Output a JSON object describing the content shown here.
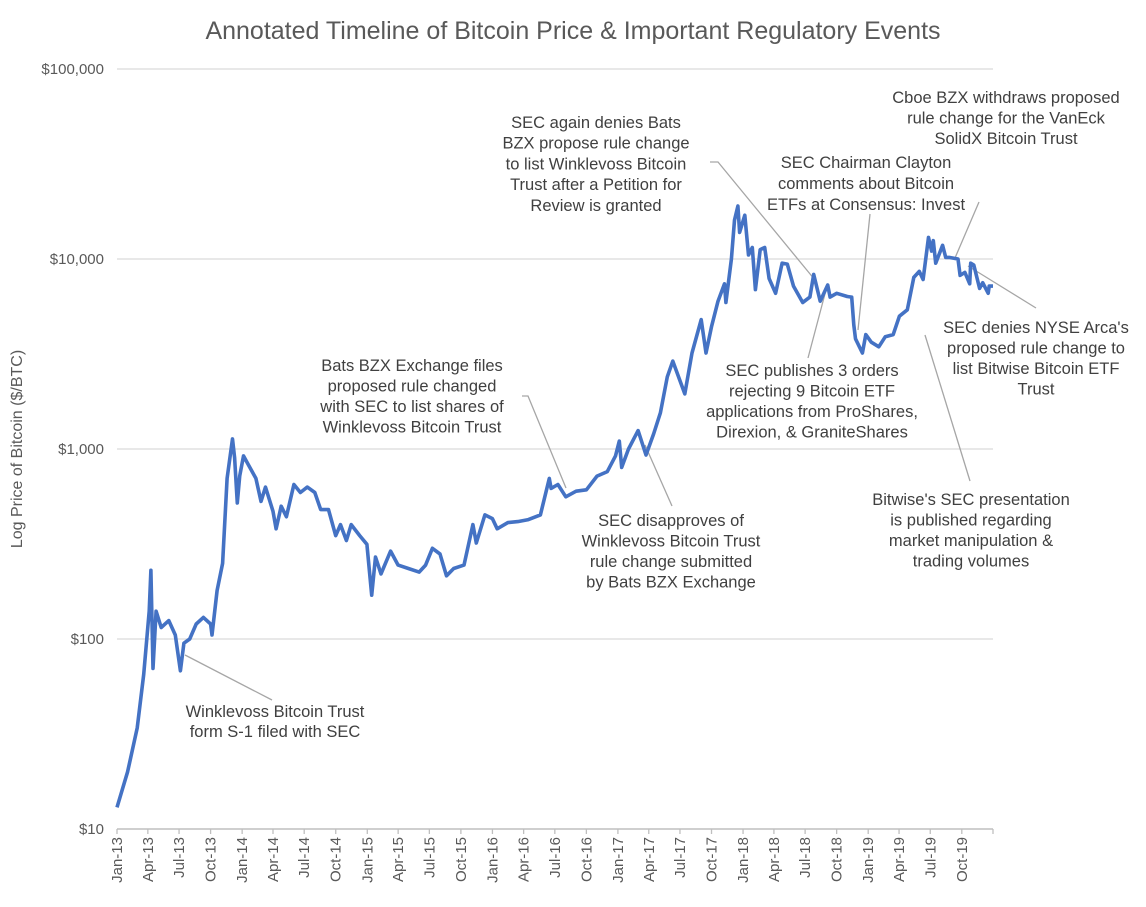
{
  "chart_data": {
    "type": "line",
    "title": "Annotated Timeline of Bitcoin Price & Important Regulatory Events",
    "xlabel": "",
    "ylabel": "Log Price of Bitcoin ($/BTC)",
    "y_scale": "log",
    "ylim": [
      10,
      100000
    ],
    "y_ticks": [
      "$10",
      "$100",
      "$1,000",
      "$10,000",
      "$100,000"
    ],
    "y_tick_values": [
      10,
      100,
      1000,
      10000,
      100000
    ],
    "x_ticks": [
      "Jan-13",
      "Apr-13",
      "Jul-13",
      "Oct-13",
      "Jan-14",
      "Apr-14",
      "Jul-14",
      "Oct-14",
      "Jan-15",
      "Apr-15",
      "Jul-15",
      "Oct-15",
      "Jan-16",
      "Apr-16",
      "Jul-16",
      "Oct-16",
      "Jan-17",
      "Apr-17",
      "Jul-17",
      "Oct-17",
      "Jan-18",
      "Apr-18",
      "Jul-18",
      "Oct-18",
      "Jan-19",
      "Apr-19",
      "Jul-19",
      "Oct-19"
    ],
    "xlim": [
      "2013-01-01",
      "2019-12-31"
    ],
    "grid": "horizontal",
    "line_color": "#4472C4",
    "series": [
      {
        "points": [
          [
            "2013-01-01",
            13
          ],
          [
            "2013-02-01",
            20
          ],
          [
            "2013-03-01",
            34
          ],
          [
            "2013-03-20",
            65
          ],
          [
            "2013-04-05",
            140
          ],
          [
            "2013-04-10",
            230
          ],
          [
            "2013-04-16",
            70
          ],
          [
            "2013-04-25",
            140
          ],
          [
            "2013-05-10",
            115
          ],
          [
            "2013-06-01",
            125
          ],
          [
            "2013-06-20",
            105
          ],
          [
            "2013-07-05",
            68
          ],
          [
            "2013-07-15",
            95
          ],
          [
            "2013-08-01",
            100
          ],
          [
            "2013-08-20",
            120
          ],
          [
            "2013-09-10",
            130
          ],
          [
            "2013-10-01",
            120
          ],
          [
            "2013-10-05",
            105
          ],
          [
            "2013-10-20",
            180
          ],
          [
            "2013-11-05",
            250
          ],
          [
            "2013-11-18",
            700
          ],
          [
            "2013-12-04",
            1130
          ],
          [
            "2013-12-10",
            900
          ],
          [
            "2013-12-18",
            520
          ],
          [
            "2013-12-25",
            720
          ],
          [
            "2014-01-05",
            920
          ],
          [
            "2014-01-20",
            820
          ],
          [
            "2014-02-10",
            700
          ],
          [
            "2014-02-25",
            530
          ],
          [
            "2014-03-10",
            630
          ],
          [
            "2014-04-01",
            470
          ],
          [
            "2014-04-10",
            380
          ],
          [
            "2014-04-25",
            500
          ],
          [
            "2014-05-10",
            440
          ],
          [
            "2014-06-01",
            650
          ],
          [
            "2014-06-20",
            590
          ],
          [
            "2014-07-10",
            630
          ],
          [
            "2014-08-01",
            590
          ],
          [
            "2014-08-18",
            480
          ],
          [
            "2014-09-10",
            480
          ],
          [
            "2014-10-01",
            350
          ],
          [
            "2014-10-15",
            400
          ],
          [
            "2014-11-01",
            330
          ],
          [
            "2014-11-15",
            400
          ],
          [
            "2014-12-10",
            350
          ],
          [
            "2014-12-31",
            315
          ],
          [
            "2015-01-14",
            170
          ],
          [
            "2015-01-25",
            270
          ],
          [
            "2015-02-10",
            220
          ],
          [
            "2015-03-10",
            290
          ],
          [
            "2015-04-01",
            245
          ],
          [
            "2015-05-01",
            235
          ],
          [
            "2015-06-01",
            225
          ],
          [
            "2015-06-20",
            245
          ],
          [
            "2015-07-10",
            300
          ],
          [
            "2015-08-01",
            280
          ],
          [
            "2015-08-20",
            215
          ],
          [
            "2015-09-10",
            235
          ],
          [
            "2015-10-10",
            245
          ],
          [
            "2015-11-05",
            400
          ],
          [
            "2015-11-15",
            320
          ],
          [
            "2015-12-10",
            450
          ],
          [
            "2016-01-01",
            430
          ],
          [
            "2016-01-15",
            380
          ],
          [
            "2016-02-15",
            410
          ],
          [
            "2016-03-15",
            415
          ],
          [
            "2016-04-15",
            425
          ],
          [
            "2016-05-20",
            450
          ],
          [
            "2016-06-15",
            700
          ],
          [
            "2016-06-20",
            620
          ],
          [
            "2016-07-10",
            650
          ],
          [
            "2016-08-02",
            560
          ],
          [
            "2016-09-01",
            600
          ],
          [
            "2016-10-01",
            610
          ],
          [
            "2016-11-01",
            720
          ],
          [
            "2016-12-01",
            760
          ],
          [
            "2016-12-25",
            920
          ],
          [
            "2017-01-05",
            1100
          ],
          [
            "2017-01-12",
            800
          ],
          [
            "2017-02-01",
            1000
          ],
          [
            "2017-03-01",
            1250
          ],
          [
            "2017-03-24",
            930
          ],
          [
            "2017-04-15",
            1200
          ],
          [
            "2017-05-05",
            1550
          ],
          [
            "2017-05-25",
            2400
          ],
          [
            "2017-06-10",
            2900
          ],
          [
            "2017-07-15",
            1950
          ],
          [
            "2017-08-05",
            3200
          ],
          [
            "2017-09-01",
            4800
          ],
          [
            "2017-09-15",
            3200
          ],
          [
            "2017-10-01",
            4400
          ],
          [
            "2017-10-20",
            6000
          ],
          [
            "2017-11-08",
            7400
          ],
          [
            "2017-11-12",
            5900
          ],
          [
            "2017-11-28",
            10000
          ],
          [
            "2017-12-07",
            16000
          ],
          [
            "2017-12-17",
            19000
          ],
          [
            "2017-12-22",
            13800
          ],
          [
            "2018-01-06",
            17000
          ],
          [
            "2018-01-17",
            10500
          ],
          [
            "2018-01-28",
            11500
          ],
          [
            "2018-02-06",
            6900
          ],
          [
            "2018-02-20",
            11200
          ],
          [
            "2018-03-05",
            11500
          ],
          [
            "2018-03-18",
            7900
          ],
          [
            "2018-04-06",
            6600
          ],
          [
            "2018-04-25",
            9500
          ],
          [
            "2018-05-10",
            9400
          ],
          [
            "2018-05-28",
            7200
          ],
          [
            "2018-06-24",
            5900
          ],
          [
            "2018-07-15",
            6300
          ],
          [
            "2018-07-26",
            8300
          ],
          [
            "2018-08-14",
            6000
          ],
          [
            "2018-09-05",
            7300
          ],
          [
            "2018-09-12",
            6300
          ],
          [
            "2018-10-01",
            6600
          ],
          [
            "2018-11-01",
            6350
          ],
          [
            "2018-11-14",
            6300
          ],
          [
            "2018-11-20",
            4500
          ],
          [
            "2018-11-25",
            3800
          ],
          [
            "2018-12-15",
            3200
          ],
          [
            "2018-12-25",
            4000
          ],
          [
            "2019-01-10",
            3650
          ],
          [
            "2019-02-01",
            3450
          ],
          [
            "2019-02-20",
            3900
          ],
          [
            "2019-03-15",
            4000
          ],
          [
            "2019-04-02",
            5000
          ],
          [
            "2019-04-25",
            5400
          ],
          [
            "2019-05-14",
            8000
          ],
          [
            "2019-05-30",
            8600
          ],
          [
            "2019-06-10",
            7800
          ],
          [
            "2019-06-26",
            13000
          ],
          [
            "2019-07-05",
            11000
          ],
          [
            "2019-07-10",
            12500
          ],
          [
            "2019-07-17",
            9500
          ],
          [
            "2019-08-06",
            11800
          ],
          [
            "2019-08-15",
            10200
          ],
          [
            "2019-08-25",
            10200
          ],
          [
            "2019-09-20",
            10000
          ],
          [
            "2019-09-26",
            8200
          ],
          [
            "2019-10-10",
            8500
          ],
          [
            "2019-10-24",
            7400
          ],
          [
            "2019-10-27",
            9500
          ],
          [
            "2019-11-05",
            9300
          ],
          [
            "2019-11-22",
            7000
          ],
          [
            "2019-12-01",
            7500
          ],
          [
            "2019-12-17",
            6600
          ],
          [
            "2019-12-20",
            7200
          ],
          [
            "2019-12-31",
            7200
          ]
        ]
      }
    ],
    "annotations": [
      {
        "lines": [
          "Winklevoss Bitcoin Trust",
          "form S-1 filed with SEC"
        ]
      },
      {
        "lines": [
          "Bats BZX Exchange files",
          "proposed rule changed",
          "with SEC to list shares of",
          "Winklevoss Bitcoin Trust"
        ]
      },
      {
        "lines": [
          "SEC disapproves of",
          "Winklevoss Bitcoin Trust",
          "rule change submitted",
          "by Bats BZX Exchange"
        ]
      },
      {
        "lines": [
          "SEC again denies Bats",
          "BZX propose rule change",
          "to list Winklevoss Bitcoin",
          "Trust after a Petition for",
          "Review is granted"
        ]
      },
      {
        "lines": [
          "SEC publishes 3 orders",
          "rejecting 9 Bitcoin ETF",
          "applications from ProShares,",
          "Direxion, & GraniteShares"
        ]
      },
      {
        "lines": [
          "SEC Chairman Clayton",
          "comments about Bitcoin",
          "ETFs at Consensus: Invest"
        ]
      },
      {
        "lines": [
          "Bitwise's SEC presentation",
          "is published regarding",
          "market manipulation &",
          "trading volumes"
        ]
      },
      {
        "lines": [
          "Cboe BZX withdraws proposed",
          "rule change for the VanEck",
          "SolidX Bitcoin Trust"
        ]
      },
      {
        "lines": [
          "SEC denies NYSE Arca's",
          "proposed rule change to",
          "list Bitwise Bitcoin ETF",
          "Trust"
        ]
      }
    ]
  }
}
